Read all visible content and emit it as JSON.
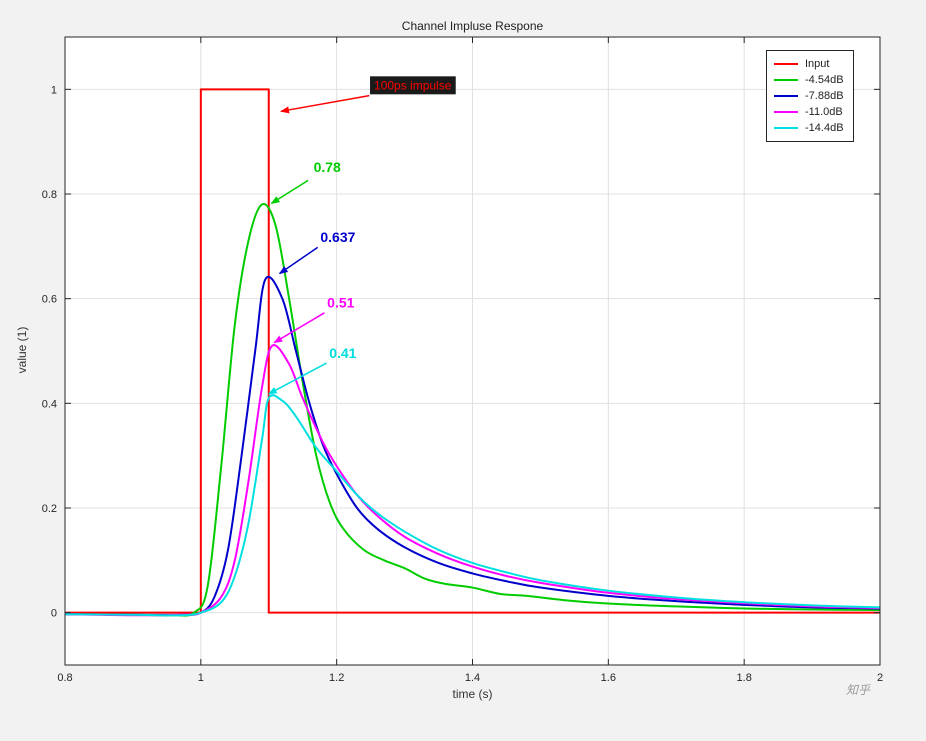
{
  "figure": {
    "background": "#f2f2f2",
    "plot_background": "#ffffff",
    "grid_color": "#e0e0e0",
    "axis_color": "#262626"
  },
  "chart_data": {
    "type": "line",
    "title": "Channel Impluse Respone",
    "xlabel": "time (s)",
    "ylabel": "value (1)",
    "xlim": [
      0.8,
      2
    ],
    "ylim": [
      -0.1,
      1.1
    ],
    "xticks": [
      0.8,
      1,
      1.2,
      1.4,
      1.6,
      1.8,
      2
    ],
    "yticks": [
      0,
      0.2,
      0.4,
      0.6,
      0.8,
      1
    ],
    "grid": true,
    "legend_position": "top-right",
    "series": [
      {
        "name": "Input",
        "color": "#ff0000",
        "smooth": false,
        "points": [
          [
            0.8,
            0
          ],
          [
            1.0,
            0
          ],
          [
            1.0,
            1
          ],
          [
            1.1,
            1
          ],
          [
            1.1,
            0
          ],
          [
            2.0,
            0
          ]
        ]
      },
      {
        "name": "-4.54dB",
        "color": "#00cc00",
        "smooth": true,
        "peak": 0.78,
        "points": [
          [
            0.8,
            -0.003
          ],
          [
            0.9,
            -0.004
          ],
          [
            0.96,
            -0.005
          ],
          [
            0.99,
            0
          ],
          [
            1.01,
            0.05
          ],
          [
            1.03,
            0.28
          ],
          [
            1.05,
            0.55
          ],
          [
            1.07,
            0.71
          ],
          [
            1.09,
            0.78
          ],
          [
            1.11,
            0.74
          ],
          [
            1.13,
            0.6
          ],
          [
            1.15,
            0.44
          ],
          [
            1.17,
            0.3
          ],
          [
            1.19,
            0.21
          ],
          [
            1.21,
            0.16
          ],
          [
            1.24,
            0.12
          ],
          [
            1.27,
            0.1
          ],
          [
            1.3,
            0.085
          ],
          [
            1.33,
            0.065
          ],
          [
            1.36,
            0.055
          ],
          [
            1.4,
            0.048
          ],
          [
            1.44,
            0.036
          ],
          [
            1.48,
            0.032
          ],
          [
            1.55,
            0.022
          ],
          [
            1.62,
            0.016
          ],
          [
            1.7,
            0.012
          ],
          [
            1.8,
            0.008
          ],
          [
            1.9,
            0.006
          ],
          [
            2.0,
            0.005
          ]
        ]
      },
      {
        "name": "-7.88dB",
        "color": "#0000cc",
        "smooth": true,
        "peak": 0.637,
        "points": [
          [
            0.8,
            -0.003
          ],
          [
            0.9,
            -0.004
          ],
          [
            0.97,
            -0.004
          ],
          [
            1.0,
            0
          ],
          [
            1.02,
            0.03
          ],
          [
            1.04,
            0.12
          ],
          [
            1.06,
            0.3
          ],
          [
            1.08,
            0.5
          ],
          [
            1.095,
            0.637
          ],
          [
            1.12,
            0.6
          ],
          [
            1.14,
            0.5
          ],
          [
            1.16,
            0.4
          ],
          [
            1.18,
            0.32
          ],
          [
            1.2,
            0.265
          ],
          [
            1.23,
            0.2
          ],
          [
            1.26,
            0.16
          ],
          [
            1.3,
            0.125
          ],
          [
            1.35,
            0.095
          ],
          [
            1.4,
            0.075
          ],
          [
            1.45,
            0.06
          ],
          [
            1.5,
            0.048
          ],
          [
            1.6,
            0.032
          ],
          [
            1.7,
            0.022
          ],
          [
            1.8,
            0.015
          ],
          [
            1.9,
            0.01
          ],
          [
            2.0,
            0.008
          ]
        ]
      },
      {
        "name": "-11.0dB",
        "color": "#ff00ff",
        "smooth": true,
        "peak": 0.51,
        "points": [
          [
            0.8,
            -0.003
          ],
          [
            0.9,
            -0.005
          ],
          [
            0.97,
            -0.004
          ],
          [
            1.0,
            0
          ],
          [
            1.03,
            0.03
          ],
          [
            1.05,
            0.1
          ],
          [
            1.07,
            0.25
          ],
          [
            1.09,
            0.43
          ],
          [
            1.105,
            0.51
          ],
          [
            1.13,
            0.475
          ],
          [
            1.15,
            0.41
          ],
          [
            1.18,
            0.325
          ],
          [
            1.2,
            0.28
          ],
          [
            1.23,
            0.225
          ],
          [
            1.26,
            0.185
          ],
          [
            1.3,
            0.145
          ],
          [
            1.35,
            0.112
          ],
          [
            1.4,
            0.088
          ],
          [
            1.45,
            0.07
          ],
          [
            1.5,
            0.057
          ],
          [
            1.6,
            0.038
          ],
          [
            1.7,
            0.026
          ],
          [
            1.8,
            0.018
          ],
          [
            1.9,
            0.012
          ],
          [
            2.0,
            0.009
          ]
        ]
      },
      {
        "name": "-14.4dB",
        "color": "#00e0e0",
        "smooth": true,
        "peak": 0.41,
        "points": [
          [
            0.8,
            -0.003
          ],
          [
            0.9,
            -0.004
          ],
          [
            0.97,
            -0.005
          ],
          [
            1.0,
            0
          ],
          [
            1.03,
            0.02
          ],
          [
            1.05,
            0.07
          ],
          [
            1.07,
            0.17
          ],
          [
            1.09,
            0.33
          ],
          [
            1.1,
            0.41
          ],
          [
            1.12,
            0.405
          ],
          [
            1.14,
            0.375
          ],
          [
            1.17,
            0.315
          ],
          [
            1.2,
            0.27
          ],
          [
            1.23,
            0.225
          ],
          [
            1.26,
            0.19
          ],
          [
            1.3,
            0.155
          ],
          [
            1.35,
            0.12
          ],
          [
            1.4,
            0.095
          ],
          [
            1.45,
            0.077
          ],
          [
            1.5,
            0.062
          ],
          [
            1.6,
            0.042
          ],
          [
            1.7,
            0.029
          ],
          [
            1.8,
            0.02
          ],
          [
            1.9,
            0.014
          ],
          [
            2.0,
            0.01
          ]
        ]
      }
    ],
    "annotations": [
      {
        "text": "100ps impulse",
        "color": "#ff0000",
        "bg": "#1a1a1a",
        "bold": false,
        "size": 12,
        "text_at": [
          1.255,
          1.0
        ],
        "arrow_from": [
          1.248,
          0.988
        ],
        "arrow_to": [
          1.118,
          0.958
        ]
      },
      {
        "text": "0.78",
        "color": "#00cc00",
        "bold": true,
        "size": 14,
        "text_at": [
          1.166,
          0.842
        ],
        "arrow_from": [
          1.158,
          0.826
        ],
        "arrow_to": [
          1.104,
          0.782
        ]
      },
      {
        "text": "0.637",
        "color": "#0000cc",
        "bold": true,
        "size": 14,
        "text_at": [
          1.176,
          0.708
        ],
        "arrow_from": [
          1.172,
          0.698
        ],
        "arrow_to": [
          1.116,
          0.648
        ]
      },
      {
        "text": "0.51",
        "color": "#ff00ff",
        "bold": true,
        "size": 14,
        "text_at": [
          1.186,
          0.583
        ],
        "arrow_from": [
          1.182,
          0.573
        ],
        "arrow_to": [
          1.108,
          0.516
        ]
      },
      {
        "text": "0.41",
        "color": "#00dddd",
        "bold": true,
        "size": 14,
        "text_at": [
          1.189,
          0.487
        ],
        "arrow_from": [
          1.185,
          0.477
        ],
        "arrow_to": [
          1.1,
          0.418
        ]
      }
    ],
    "watermark": "知乎"
  }
}
